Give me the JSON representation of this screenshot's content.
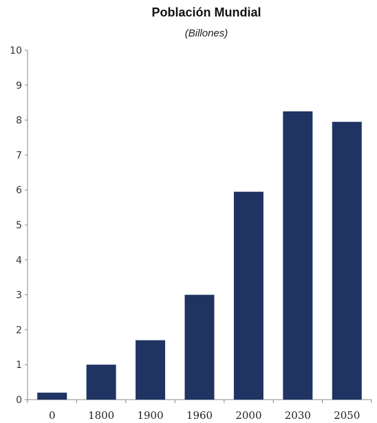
{
  "chart_data": {
    "type": "bar",
    "title": "Población Mundial",
    "subtitle": "(Billones)",
    "xlabel": "",
    "ylabel": "",
    "categories": [
      "0",
      "1800",
      "1900",
      "1960",
      "2000",
      "2030",
      "2050"
    ],
    "values": [
      0.2,
      1.0,
      1.7,
      3.0,
      5.95,
      8.25,
      7.95
    ],
    "ylim": [
      0,
      10
    ],
    "yticks": [
      "0",
      "1",
      "2",
      "3",
      "4",
      "5",
      "6",
      "7",
      "8",
      "9",
      "10"
    ],
    "grid": false,
    "legend": "none",
    "colors": {
      "bar": "#1f3462",
      "axis": "#888888"
    }
  }
}
